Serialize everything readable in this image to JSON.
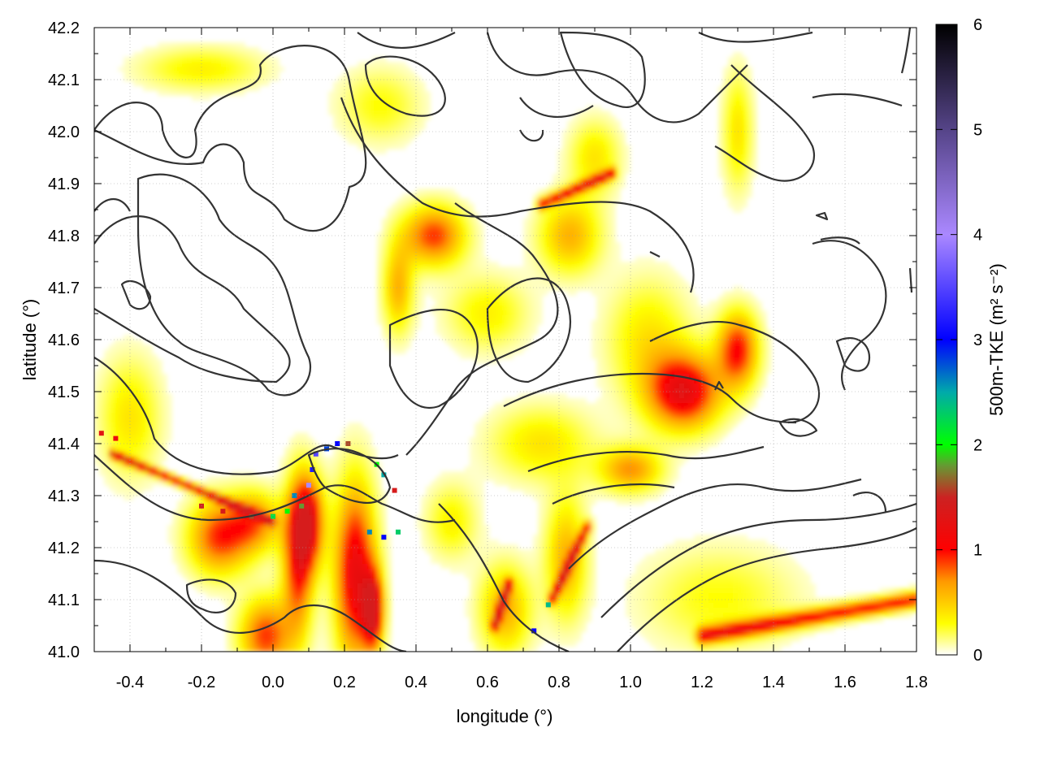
{
  "chart_data": {
    "type": "heatmap",
    "title": "",
    "xlabel": "longitude (°)",
    "ylabel": "latitude (°)",
    "colorbar_label": "500m-TKE (m² s⁻²)",
    "xlim": [
      -0.5,
      1.8
    ],
    "ylim": [
      41.0,
      42.2
    ],
    "clim": [
      0,
      6
    ],
    "x_ticks": [
      "-0.4",
      "-0.2",
      "0.0",
      "0.2",
      "0.4",
      "0.6",
      "0.8",
      "1.0",
      "1.2",
      "1.4",
      "1.6",
      "1.8"
    ],
    "x_tick_values": [
      -0.4,
      -0.2,
      0.0,
      0.2,
      0.4,
      0.6,
      0.8,
      1.0,
      1.2,
      1.4,
      1.6,
      1.8
    ],
    "y_ticks": [
      "41.0",
      "41.1",
      "41.2",
      "41.3",
      "41.4",
      "41.5",
      "41.6",
      "41.7",
      "41.8",
      "41.9",
      "42.0",
      "42.1",
      "42.2"
    ],
    "y_tick_values": [
      41.0,
      41.1,
      41.2,
      41.3,
      41.4,
      41.5,
      41.6,
      41.7,
      41.8,
      41.9,
      42.0,
      42.1,
      42.2
    ],
    "colorbar_ticks": [
      "0",
      "1",
      "2",
      "3",
      "4",
      "5",
      "6"
    ],
    "colorbar_tick_values": [
      0,
      1,
      2,
      3,
      4,
      5,
      6
    ],
    "colormap_stops": [
      {
        "value": 0.0,
        "color": "#ffffff"
      },
      {
        "value": 0.3,
        "color": "#ffff00"
      },
      {
        "value": 0.7,
        "color": "#ff9900"
      },
      {
        "value": 1.0,
        "color": "#ff0000"
      },
      {
        "value": 1.5,
        "color": "#cc2222"
      },
      {
        "value": 1.8,
        "color": "#669933"
      },
      {
        "value": 2.0,
        "color": "#00ff00"
      },
      {
        "value": 2.5,
        "color": "#00aaaa"
      },
      {
        "value": 3.0,
        "color": "#0000ff"
      },
      {
        "value": 4.0,
        "color": "#aa88ff"
      },
      {
        "value": 5.0,
        "color": "#554488"
      },
      {
        "value": 6.0,
        "color": "#000000"
      }
    ],
    "grid": true,
    "contour_color": "#333333",
    "tke_features": [
      {
        "lon": 0.07,
        "lat": 41.18,
        "sx": 0.03,
        "sy": 0.1,
        "v": 1.0
      },
      {
        "lon": 0.1,
        "lat": 41.25,
        "sx": 0.03,
        "sy": 0.06,
        "v": 1.1
      },
      {
        "lon": 0.23,
        "lat": 41.15,
        "sx": 0.04,
        "sy": 0.12,
        "v": 1.2
      },
      {
        "lon": 0.28,
        "lat": 41.08,
        "sx": 0.02,
        "sy": 0.05,
        "v": 1.3
      },
      {
        "lon": -0.15,
        "lat": 41.22,
        "sx": 0.06,
        "sy": 0.05,
        "v": 0.9
      },
      {
        "lon": -0.05,
        "lat": 41.25,
        "sx": 0.05,
        "sy": 0.04,
        "v": 0.7
      },
      {
        "lon": -0.02,
        "lat": 41.03,
        "sx": 0.05,
        "sy": 0.05,
        "v": 0.9
      },
      {
        "lon": 0.45,
        "lat": 41.8,
        "sx": 0.06,
        "sy": 0.04,
        "v": 0.9
      },
      {
        "lon": 0.35,
        "lat": 41.7,
        "sx": 0.03,
        "sy": 0.06,
        "v": 0.6
      },
      {
        "lon": 0.83,
        "lat": 41.8,
        "sx": 0.06,
        "sy": 0.05,
        "v": 0.6
      },
      {
        "lon": 1.15,
        "lat": 41.5,
        "sx": 0.07,
        "sy": 0.05,
        "v": 1.2
      },
      {
        "lon": 1.3,
        "lat": 41.58,
        "sx": 0.04,
        "sy": 0.05,
        "v": 1.0
      },
      {
        "lon": 1.05,
        "lat": 41.6,
        "sx": 0.08,
        "sy": 0.08,
        "v": 0.4
      },
      {
        "lon": 0.75,
        "lat": 41.4,
        "sx": 0.1,
        "sy": 0.05,
        "v": 0.4
      },
      {
        "lon": 1.0,
        "lat": 41.35,
        "sx": 0.06,
        "sy": 0.03,
        "v": 0.7
      },
      {
        "lon": 0.82,
        "lat": 41.18,
        "sx": 0.04,
        "sy": 0.08,
        "v": 0.6
      },
      {
        "lon": 0.65,
        "lat": 41.08,
        "sx": 0.05,
        "sy": 0.06,
        "v": 0.6
      },
      {
        "lon": 0.6,
        "lat": 41.65,
        "sx": 0.08,
        "sy": 0.05,
        "v": 0.35
      },
      {
        "lon": 0.3,
        "lat": 42.05,
        "sx": 0.08,
        "sy": 0.05,
        "v": 0.3
      },
      {
        "lon": -0.2,
        "lat": 42.12,
        "sx": 0.12,
        "sy": 0.03,
        "v": 0.35
      },
      {
        "lon": 1.3,
        "lat": 42.0,
        "sx": 0.03,
        "sy": 0.08,
        "v": 0.4
      },
      {
        "lon": 0.9,
        "lat": 41.95,
        "sx": 0.05,
        "sy": 0.05,
        "v": 0.4
      },
      {
        "lon": 1.25,
        "lat": 41.1,
        "sx": 0.15,
        "sy": 0.07,
        "v": 0.3
      },
      {
        "lon": -0.4,
        "lat": 41.45,
        "sx": 0.06,
        "sy": 0.08,
        "v": 0.4
      },
      {
        "lon": 0.5,
        "lat": 41.25,
        "sx": 0.05,
        "sy": 0.05,
        "v": 0.35
      }
    ],
    "tke_streaks": [
      {
        "lon": [
          1.2,
          1.8
        ],
        "lat": [
          41.03,
          41.1
        ],
        "w": 0.012,
        "v": 1.0
      },
      {
        "lon": [
          0.62,
          0.66
        ],
        "lat": [
          41.05,
          41.13
        ],
        "w": 0.008,
        "v": 1.0
      },
      {
        "lon": [
          0.78,
          0.88
        ],
        "lat": [
          41.1,
          41.24
        ],
        "w": 0.008,
        "v": 1.0
      },
      {
        "lon": [
          -0.45,
          0.0
        ],
        "lat": [
          41.38,
          41.25
        ],
        "w": 0.006,
        "v": 1.2
      },
      {
        "lon": [
          0.75,
          0.95
        ],
        "lat": [
          41.86,
          41.92
        ],
        "w": 0.008,
        "v": 1.0
      }
    ],
    "high_points": [
      {
        "lon": -0.2,
        "lat": 41.28,
        "v": 1.5
      },
      {
        "lon": -0.14,
        "lat": 41.27,
        "v": 1.4
      },
      {
        "lon": -0.06,
        "lat": 41.26,
        "v": 1.6
      },
      {
        "lon": 0.0,
        "lat": 41.26,
        "v": 2.2
      },
      {
        "lon": 0.04,
        "lat": 41.27,
        "v": 2.0
      },
      {
        "lon": 0.06,
        "lat": 41.3,
        "v": 2.6
      },
      {
        "lon": 0.08,
        "lat": 41.28,
        "v": 1.8
      },
      {
        "lon": 0.1,
        "lat": 41.32,
        "v": 4.0
      },
      {
        "lon": 0.11,
        "lat": 41.35,
        "v": 3.2
      },
      {
        "lon": 0.12,
        "lat": 41.38,
        "v": 3.5
      },
      {
        "lon": 0.15,
        "lat": 41.39,
        "v": 2.8
      },
      {
        "lon": 0.18,
        "lat": 41.4,
        "v": 3.0
      },
      {
        "lon": 0.21,
        "lat": 41.4,
        "v": 1.6
      },
      {
        "lon": 0.29,
        "lat": 41.36,
        "v": 2.0
      },
      {
        "lon": 0.31,
        "lat": 41.34,
        "v": 2.5
      },
      {
        "lon": 0.34,
        "lat": 41.31,
        "v": 1.4
      },
      {
        "lon": 0.27,
        "lat": 41.23,
        "v": 2.6
      },
      {
        "lon": 0.31,
        "lat": 41.22,
        "v": 3.0
      },
      {
        "lon": 0.35,
        "lat": 41.23,
        "v": 2.3
      },
      {
        "lon": 0.73,
        "lat": 41.04,
        "v": 3.0
      },
      {
        "lon": 0.77,
        "lat": 41.09,
        "v": 2.4
      },
      {
        "lon": -0.48,
        "lat": 41.42,
        "v": 1.3
      },
      {
        "lon": -0.44,
        "lat": 41.41,
        "v": 1.2
      }
    ]
  }
}
